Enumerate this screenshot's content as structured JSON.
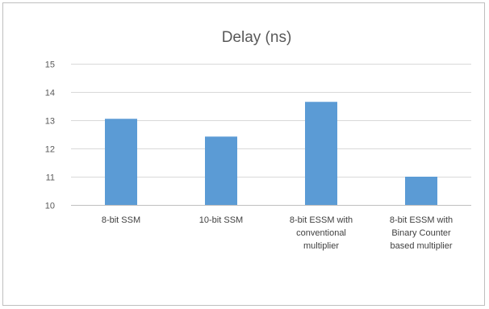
{
  "chart_data": {
    "type": "bar",
    "title": "Delay (ns)",
    "xlabel": "",
    "ylabel": "",
    "categories": [
      [
        "8-bit SSM"
      ],
      [
        "10-bit SSM"
      ],
      [
        "8-bit ESSM with",
        "conventional",
        "multiplier"
      ],
      [
        "8-bit ESSM with",
        "Binary Counter",
        "based multiplier"
      ]
    ],
    "values": [
      13.05,
      12.42,
      13.65,
      11.0
    ],
    "ylim": [
      10,
      15
    ],
    "yticks": [
      "10",
      "11",
      "12",
      "13",
      "14",
      "15"
    ],
    "grid": true,
    "legend": "none",
    "bar_color": "#5b9bd5"
  }
}
